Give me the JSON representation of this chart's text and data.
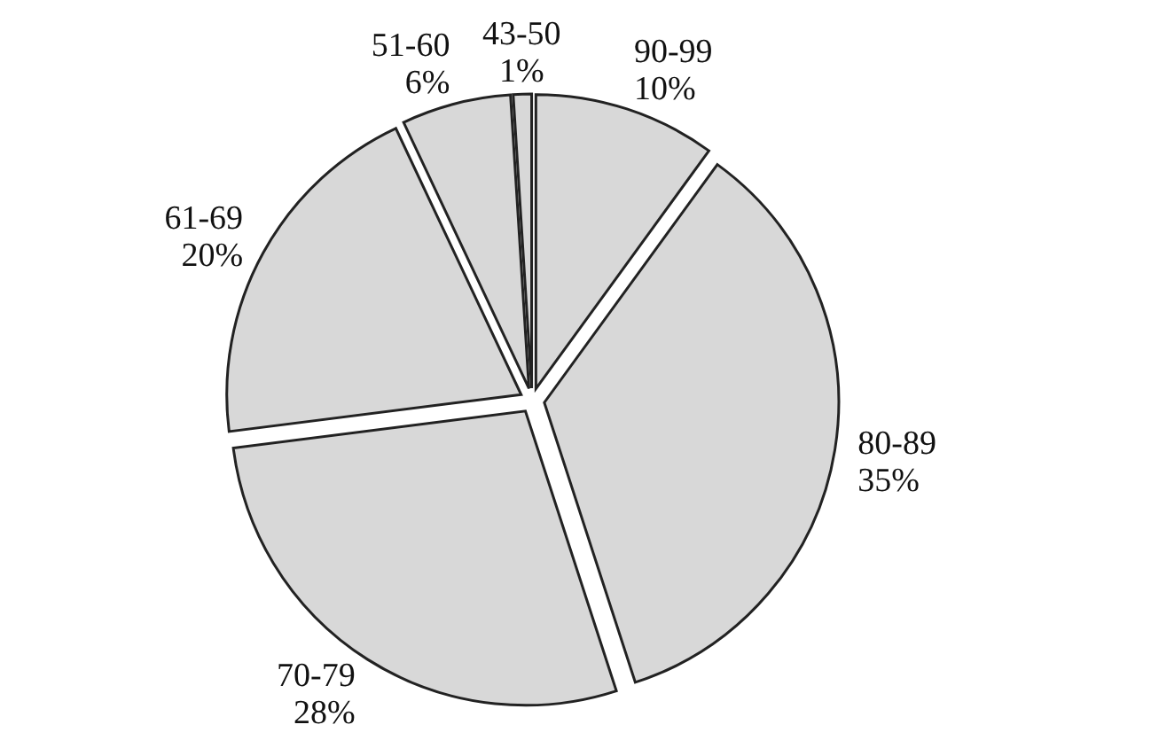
{
  "chart_data": {
    "type": "pie",
    "categories": [
      "90-99",
      "80-89",
      "70-79",
      "61-69",
      "51-60",
      "43-50"
    ],
    "values": [
      10,
      35,
      28,
      20,
      6,
      1
    ],
    "value_labels": [
      "10%",
      "35%",
      "28%",
      "20%",
      "6%",
      "1%"
    ],
    "colors": [
      "#d8d8d8",
      "#d8d8d8",
      "#d8d8d8",
      "#d8d8d8",
      "#d8d8d8",
      "#d8d8d8"
    ]
  }
}
